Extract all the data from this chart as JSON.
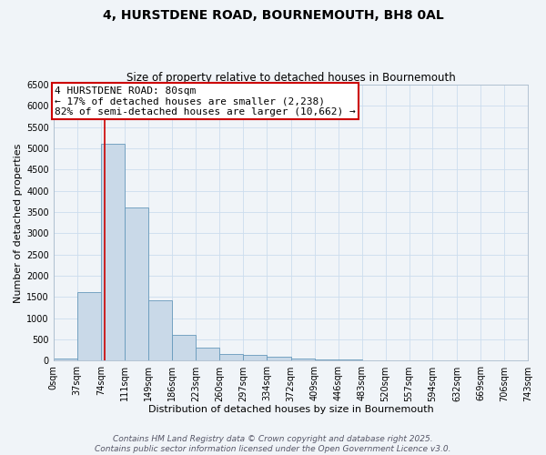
{
  "title": "4, HURSTDENE ROAD, BOURNEMOUTH, BH8 0AL",
  "subtitle": "Size of property relative to detached houses in Bournemouth",
  "xlabel": "Distribution of detached houses by size in Bournemouth",
  "ylabel": "Number of detached properties",
  "bin_edges": [
    0,
    37,
    74,
    111,
    149,
    186,
    223,
    260,
    297,
    334,
    372,
    409,
    446,
    483,
    520,
    557,
    594,
    632,
    669,
    706,
    743
  ],
  "bar_heights": [
    60,
    1620,
    5100,
    3600,
    1420,
    600,
    310,
    150,
    130,
    100,
    50,
    30,
    30,
    0,
    0,
    0,
    0,
    0,
    0,
    0
  ],
  "bar_color": "#c9d9e8",
  "bar_edge_color": "#6699bb",
  "grid_color": "#ccddee",
  "background_color": "#f0f4f8",
  "property_size": 80,
  "red_line_color": "#cc0000",
  "annotation_line1": "4 HURSTDENE ROAD: 80sqm",
  "annotation_line2": "← 17% of detached houses are smaller (2,238)",
  "annotation_line3": "82% of semi-detached houses are larger (10,662) →",
  "annotation_box_color": "#cc0000",
  "footer_line1": "Contains HM Land Registry data © Crown copyright and database right 2025.",
  "footer_line2": "Contains public sector information licensed under the Open Government Licence v3.0.",
  "ylim": [
    0,
    6500
  ],
  "yticks": [
    0,
    500,
    1000,
    1500,
    2000,
    2500,
    3000,
    3500,
    4000,
    4500,
    5000,
    5500,
    6000,
    6500
  ],
  "title_fontsize": 10,
  "subtitle_fontsize": 8.5,
  "axis_label_fontsize": 8,
  "tick_fontsize": 7,
  "annotation_fontsize": 8,
  "footer_fontsize": 6.5
}
